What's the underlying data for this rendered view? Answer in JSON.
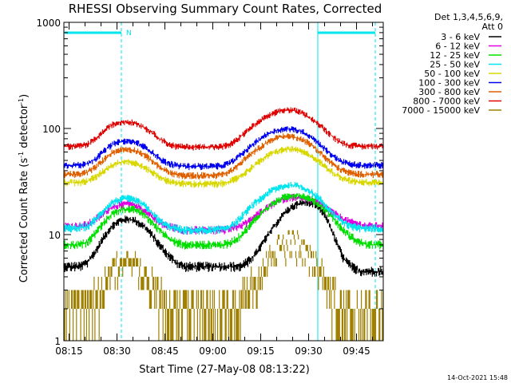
{
  "chart_data": {
    "type": "line",
    "title": "RHESSI Observing Summary Count Rates, Corrected",
    "xlabel": "Start Time (27-May-08 08:13:22)",
    "ylabel_parts": [
      "Corrected Count Rate (s",
      "-1",
      " detector",
      "-1",
      ")"
    ],
    "y_scale": "log",
    "ylim": [
      1,
      1000
    ],
    "xlim_minutes": [
      0,
      100
    ],
    "x_tick_labels": [
      "08:15",
      "08:30",
      "08:45",
      "09:00",
      "09:15",
      "09:30",
      "09:45"
    ],
    "x_tick_minutes": [
      1.633,
      16.633,
      31.633,
      46.633,
      61.633,
      76.633,
      91.633
    ],
    "y_tick_labels": [
      "1",
      "10",
      "100",
      "1000"
    ],
    "y_tick_values": [
      1,
      10,
      100,
      1000
    ],
    "legend_header": [
      "Det 1,3,4,5,6,9,",
      "Att 0"
    ],
    "markers": [
      {
        "minute": 18.0,
        "color": "#00e5ee",
        "style": "dashed"
      },
      {
        "minute": 79.5,
        "color": "#00e5ee",
        "style": "solid"
      },
      {
        "minute": 97.5,
        "color": "#00e5ee",
        "style": "dashed"
      }
    ],
    "top_bars": [
      {
        "start": 0.3,
        "end": 18.0,
        "label": "N"
      },
      {
        "start": 79.5,
        "end": 97.5,
        "label": ""
      }
    ],
    "series": [
      {
        "name": "3 - 6 keV",
        "color": "#000000",
        "values": [
          5,
          5,
          5,
          5.5,
          7,
          9.5,
          12,
          13.5,
          14,
          13.5,
          12,
          10,
          8,
          6.5,
          5.5,
          5,
          5,
          5,
          5,
          5,
          5,
          5,
          5,
          5.5,
          6.5,
          8.5,
          11,
          14,
          17,
          19,
          20,
          20,
          18,
          14,
          9,
          6,
          5,
          4.5,
          4.5,
          4.5,
          4.5
        ]
      },
      {
        "name": "6 - 12 keV",
        "color": "#e000e0",
        "values": [
          12,
          12,
          12,
          12.5,
          14,
          16,
          18,
          19,
          19.5,
          19,
          17,
          15,
          13,
          12,
          11.5,
          11,
          11,
          11,
          11,
          11,
          11,
          11.5,
          12,
          13,
          15,
          17,
          19,
          21,
          22,
          22.5,
          22,
          21,
          19.5,
          17.5,
          15.5,
          14,
          13,
          12.5,
          12,
          12,
          12
        ]
      },
      {
        "name": "12 - 25 keV",
        "color": "#00e000",
        "values": [
          8,
          8,
          8,
          8.5,
          10.5,
          13,
          15.5,
          17,
          17.5,
          17,
          15.5,
          13,
          11,
          9.5,
          8.5,
          8,
          8,
          8,
          8,
          8,
          8,
          8.5,
          9.5,
          11.5,
          14,
          16.5,
          19,
          21.5,
          23,
          23.5,
          23,
          21.5,
          19,
          16.5,
          13.5,
          11,
          9.5,
          8.5,
          8,
          8,
          8
        ]
      },
      {
        "name": "25 - 50 keV",
        "color": "#00e5ee",
        "values": [
          11.5,
          11.5,
          11.5,
          12,
          14,
          17,
          20,
          21.5,
          22,
          21,
          19,
          16,
          13.5,
          12,
          11.5,
          11,
          11,
          11,
          11,
          11,
          11.5,
          12,
          14,
          17,
          20,
          23,
          26,
          28,
          29,
          29,
          27.5,
          25,
          22,
          18,
          15,
          13,
          12,
          11.5,
          11.5,
          11.5,
          11.5
        ]
      },
      {
        "name": "50 - 100 keV",
        "color": "#d8d800",
        "values": [
          31,
          31,
          31,
          32,
          35,
          40,
          45,
          48,
          49,
          47,
          43,
          39,
          35,
          32,
          31,
          30,
          30,
          30,
          30,
          30,
          30.5,
          32,
          35,
          40,
          46,
          52,
          58,
          62,
          64,
          63,
          60,
          55,
          49,
          42,
          37,
          34,
          32,
          31,
          31,
          31,
          31
        ]
      },
      {
        "name": "100 - 300 keV",
        "color": "#0000f0",
        "values": [
          45,
          45,
          45,
          47,
          52,
          61,
          70,
          75,
          76,
          74,
          68,
          60,
          52,
          47,
          45,
          44,
          44,
          44,
          44,
          44,
          45,
          48,
          55,
          64,
          74,
          84,
          92,
          97,
          99,
          97,
          92,
          83,
          72,
          61,
          53,
          48,
          46,
          45,
          45,
          45,
          45
        ]
      },
      {
        "name": "300 - 800 keV",
        "color": "#e06000",
        "values": [
          37,
          37,
          37,
          39,
          43,
          51,
          59,
          63,
          64,
          62,
          57,
          50,
          43,
          39,
          37,
          36,
          36,
          36,
          36,
          36,
          37,
          40,
          46,
          54,
          62,
          70,
          78,
          83,
          85,
          83,
          78,
          70,
          60,
          51,
          44,
          40,
          38,
          37,
          37,
          37,
          37
        ]
      },
      {
        "name": "800 - 7000 keV",
        "color": "#e00000",
        "values": [
          68,
          68,
          68,
          71,
          80,
          94,
          108,
          114,
          116,
          112,
          103,
          92,
          80,
          72,
          68,
          67,
          67,
          67,
          67,
          67,
          68,
          72,
          82,
          96,
          110,
          124,
          136,
          146,
          150,
          147,
          138,
          124,
          108,
          93,
          80,
          72,
          69,
          68,
          68,
          68,
          68
        ]
      },
      {
        "name": "7000 - 15000 keV",
        "color": "#a08000",
        "values": [
          1.7,
          1.7,
          1.7,
          1.8,
          2.2,
          3,
          4.2,
          5.2,
          5.6,
          5.2,
          4.3,
          3.2,
          2.4,
          1.9,
          1.7,
          1.6,
          1.6,
          1.6,
          1.6,
          1.6,
          1.6,
          1.7,
          2.1,
          2.8,
          3.8,
          5,
          6.4,
          7.6,
          8.2,
          8,
          7,
          5.6,
          4.2,
          3,
          2.2,
          1.8,
          1.7,
          1.6,
          1.6,
          1.6,
          1.6
        ]
      }
    ]
  },
  "timestamp": "14-Oct-2021 15:48"
}
